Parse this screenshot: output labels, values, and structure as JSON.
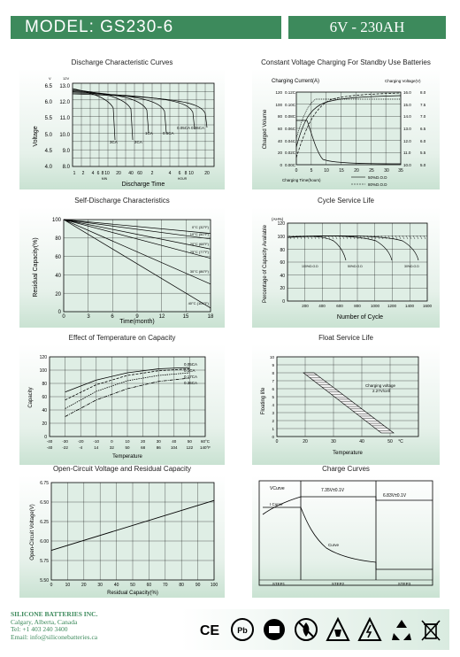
{
  "header": {
    "model_label": "MODEL: GS230-6",
    "spec": "6V - 230AH"
  },
  "charts": {
    "discharge": {
      "title": "Discharge Characteristic Curves",
      "ylabel": "Voltage",
      "xlabel": "Discharge Time",
      "y_ticks_left": [
        "6.5",
        "6.0",
        "5.5",
        "5.0",
        "4.5",
        "4.0"
      ],
      "y_ticks_right": [
        "13.0",
        "12.0",
        "11.0",
        "10.0",
        "9.0",
        "8.0"
      ],
      "y_units": [
        "V",
        "12V"
      ],
      "x_ticks": [
        "1",
        "2",
        "4",
        "6",
        "8",
        "10",
        "20",
        "40",
        "60",
        "2",
        "4",
        "6",
        "8",
        "10",
        "20"
      ],
      "x_units": [
        "MIN",
        "HOUR"
      ],
      "curve_labels": [
        "3CA",
        "2CA",
        "1CA",
        "0.6CA",
        "0.05CA 0.06CA"
      ]
    },
    "charging": {
      "title": "Constant Voltage Charging For Standby Use Batteries",
      "left_header": "Charging Current(A)",
      "right_header": "Charging Voltage(V)",
      "ylabel": "Charged Volume",
      "y_ticks_volume": [
        "120",
        "100",
        "80",
        "60",
        "40",
        "20",
        "0"
      ],
      "y_ticks_current": [
        "0.12C",
        "0.10C",
        "0.08C",
        "0.06C",
        "0.04C",
        "0.02C",
        "0.00C"
      ],
      "y_ticks_voltage": [
        "16.0",
        "15.0",
        "14.0",
        "13.0",
        "12.0",
        "11.0",
        "10.0"
      ],
      "y_ticks_voltage6": [
        "8.0",
        "7.5",
        "7.0",
        "6.5",
        "6.0",
        "5.5",
        "5.0"
      ],
      "x_ticks": [
        "0",
        "5",
        "10",
        "15",
        "20",
        "25",
        "30",
        "35"
      ],
      "xlabel": "Charging Time(hours)",
      "legend": [
        "50%D.O.D",
        "80%D.O.D"
      ]
    },
    "self_discharge": {
      "title": "Self-Discharge  Characteristics",
      "ylabel": "Residual Capacity(%)",
      "xlabel": "Time(month)",
      "y_ticks": [
        "100",
        "80",
        "60",
        "40",
        "20",
        "0"
      ],
      "x_ticks": [
        "0",
        "3",
        "6",
        "9",
        "12",
        "15",
        "18"
      ],
      "curve_labels": [
        "0°C (32°F)",
        "10°C (50°F)",
        "20°C (68°F)",
        "25°C (77°F)",
        "30°C (86°F)",
        "40°C (104°F)"
      ],
      "series": [
        {
          "name": "0°C (32°F)",
          "x": [
            0,
            18
          ],
          "y": [
            100,
            85
          ]
        },
        {
          "name": "10°C (50°F)",
          "x": [
            0,
            18
          ],
          "y": [
            100,
            79
          ]
        },
        {
          "name": "20°C (68°F)",
          "x": [
            0,
            18
          ],
          "y": [
            100,
            68
          ]
        },
        {
          "name": "25°C (77°F)",
          "x": [
            0,
            18
          ],
          "y": [
            100,
            58
          ]
        },
        {
          "name": "30°C (86°F)",
          "x": [
            0,
            18
          ],
          "y": [
            100,
            30
          ]
        },
        {
          "name": "40°C (104°F)",
          "x": [
            0,
            18
          ],
          "y": [
            100,
            4
          ]
        }
      ]
    },
    "cycle": {
      "title": "Cycle  Service  Life",
      "ylabel": "Percentage of Capacity Available",
      "xlabel": "Number of Cycle",
      "y_ticks": [
        "120",
        "100",
        "80",
        "60",
        "40",
        "20",
        "0"
      ],
      "x_ticks": [
        "200",
        "400",
        "600",
        "800",
        "1000",
        "1200",
        "1400",
        "1600"
      ],
      "y_unit": "(AH%)",
      "curve_labels": [
        "100%D.O.D",
        "50%D.O.D",
        "30%D.O.D"
      ]
    },
    "temperature": {
      "title": "Effect of Temperature on Capacity",
      "ylabel": "Capacity",
      "xlabel": "Temperature",
      "y_ticks": [
        "120",
        "100",
        "80",
        "60",
        "40",
        "20",
        "0"
      ],
      "x_ticks_c": [
        "-40",
        "-30",
        "-20",
        "-10",
        "0",
        "10",
        "20",
        "30",
        "40",
        "50",
        "60°C"
      ],
      "x_ticks_f": [
        "-40",
        "-22",
        "-4",
        "14",
        "32",
        "50",
        "68",
        "86",
        "104",
        "122",
        "140°F"
      ],
      "legend": [
        "0.05CA",
        "0.1CA",
        "0.17CA",
        "0.36CA"
      ],
      "series": [
        {
          "name": "0.05CA",
          "x": [
            -30,
            -10,
            10,
            30,
            50
          ],
          "y": [
            67,
            85,
            96,
            102,
            104
          ]
        },
        {
          "name": "0.1CA",
          "x": [
            -30,
            -10,
            10,
            30,
            50
          ],
          "y": [
            55,
            78,
            92,
            99,
            102
          ]
        },
        {
          "name": "0.17CA",
          "x": [
            -30,
            -10,
            10,
            30,
            50
          ],
          "y": [
            42,
            68,
            84,
            92,
            96
          ]
        },
        {
          "name": "0.36CA",
          "x": [
            -30,
            -10,
            10,
            30,
            50
          ],
          "y": [
            30,
            55,
            72,
            83,
            88
          ]
        }
      ]
    },
    "float": {
      "title": "Float  Service  Life",
      "ylabel": "Floating life",
      "xlabel": "Temperature",
      "y_ticks": [
        "10",
        "9",
        "8",
        "7",
        "6",
        "5",
        "4",
        "3",
        "2",
        "1",
        "0"
      ],
      "x_ticks": [
        "0",
        "20",
        "30",
        "40",
        "50",
        "°C"
      ],
      "annotation": "Charging voltage 2.27V/cell"
    },
    "ocv": {
      "title": "Open-Circuit Voltage and Residual Capacity",
      "ylabel": "Open-Circuit Voltage(V)",
      "xlabel": "Residual Capacity(%)",
      "y_ticks": [
        "6.75",
        "6.50",
        "6.25",
        "6.00",
        "5.75",
        "5.50"
      ],
      "x_ticks": [
        "0",
        "10",
        "20",
        "30",
        "40",
        "50",
        "60",
        "70",
        "80",
        "90",
        "100"
      ],
      "series": [
        {
          "x": [
            0,
            100
          ],
          "y": [
            5.88,
            6.52
          ]
        }
      ]
    },
    "charge_curves": {
      "title": "Charge Curves",
      "labels": [
        "VCurve",
        "I Curve",
        "7.35V±0.1V",
        "6.83V±0.1V",
        "Curve"
      ],
      "steps": [
        "STEP1",
        "STEP2",
        "STEP3"
      ]
    }
  },
  "footer": {
    "company": "SILICONE BATTERIES INC.",
    "city": "Calgary, Alberta, Canada",
    "tel": "Tel: +1 403 240 3400",
    "email": "Email: info@siliconebatteries.ca"
  },
  "icons": [
    "ce-mark-icon",
    "recycle-pb-icon",
    "ul-mark-icon",
    "no-fire-icon",
    "battery-acid-icon",
    "spark-hazard-icon",
    "recycle-icon",
    "no-trash-icon"
  ],
  "icon_text": {
    "ce": "CE",
    "pb": "Pb"
  },
  "colors": {
    "accent": "#3d8a5c",
    "plot_bg": "#dfeee5"
  }
}
